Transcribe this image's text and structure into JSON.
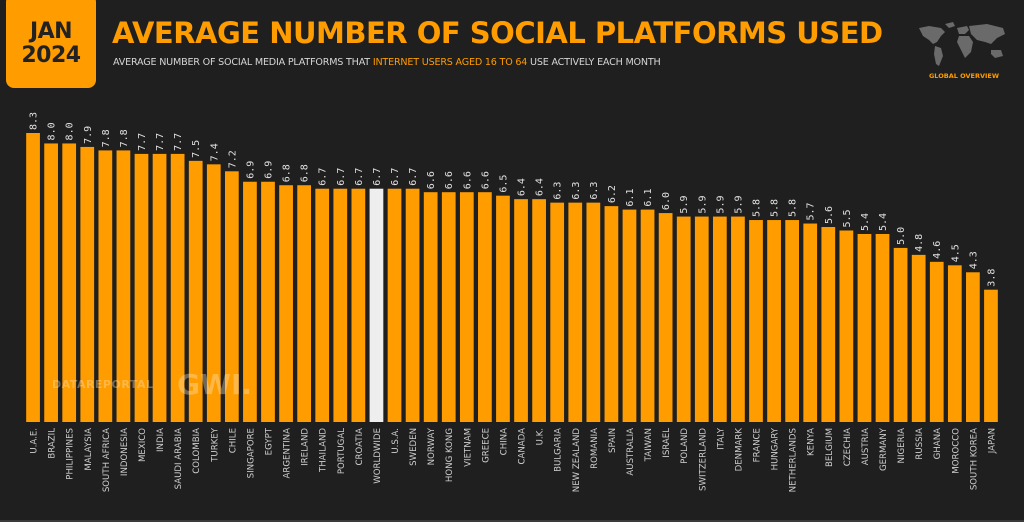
{
  "badge": {
    "month": "JAN",
    "year": "2024"
  },
  "header": {
    "title": "AVERAGE NUMBER OF SOCIAL PLATFORMS USED",
    "subtitle_pre": "AVERAGE NUMBER OF SOCIAL MEDIA PLATFORMS THAT ",
    "subtitle_highlight": "INTERNET USERS AGED 16 TO 64",
    "subtitle_post": " USE ACTIVELY EACH MONTH"
  },
  "logo": {
    "icon": "world-map-icon",
    "caption": "GLOBAL OVERVIEW"
  },
  "watermark": {
    "left": "DATAREPORTAL",
    "right": "GWI."
  },
  "colors": {
    "background": "#1f1f1f",
    "bar": "#ff9c00",
    "highlight_bar": "#eeeeee",
    "label": "#e0e0e0"
  },
  "chart_data": {
    "type": "bar",
    "title": "AVERAGE NUMBER OF SOCIAL PLATFORMS USED",
    "subtitle": "AVERAGE NUMBER OF SOCIAL MEDIA PLATFORMS THAT INTERNET USERS AGED 16 TO 64 USE ACTIVELY EACH MONTH",
    "xlabel": "",
    "ylabel": "",
    "ylim": [
      0,
      8.3
    ],
    "grid": false,
    "highlight_category": "WORLDWIDE",
    "categories": [
      "U.A.E.",
      "BRAZIL",
      "PHILIPPINES",
      "MALAYSIA",
      "SOUTH AFRICA",
      "INDONESIA",
      "MEXICO",
      "INDIA",
      "SAUDI ARABIA",
      "COLOMBIA",
      "TURKEY",
      "CHILE",
      "SINGAPORE",
      "EGYPT",
      "ARGENTINA",
      "IRELAND",
      "THAILAND",
      "PORTUGAL",
      "CROATIA",
      "WORLDWIDE",
      "U.S.A.",
      "SWEDEN",
      "NORWAY",
      "HONG KONG",
      "VIETNAM",
      "GREECE",
      "CHINA",
      "CANADA",
      "U.K.",
      "BULGARIA",
      "NEW ZEALAND",
      "ROMANIA",
      "SPAIN",
      "AUSTRALIA",
      "TAIWAN",
      "ISRAEL",
      "POLAND",
      "SWITZERLAND",
      "ITALY",
      "DENMARK",
      "FRANCE",
      "HUNGARY",
      "NETHERLANDS",
      "KENYA",
      "BELGIUM",
      "CZECHIA",
      "AUSTRIA",
      "GERMANY",
      "NIGERIA",
      "RUSSIA",
      "GHANA",
      "MOROCCO",
      "SOUTH KOREA",
      "JAPAN"
    ],
    "values": [
      8.3,
      8.0,
      8.0,
      7.9,
      7.8,
      7.8,
      7.7,
      7.7,
      7.7,
      7.5,
      7.4,
      7.2,
      6.9,
      6.9,
      6.8,
      6.8,
      6.7,
      6.7,
      6.7,
      6.7,
      6.7,
      6.7,
      6.6,
      6.6,
      6.6,
      6.6,
      6.5,
      6.4,
      6.4,
      6.3,
      6.3,
      6.3,
      6.2,
      6.1,
      6.1,
      6.0,
      5.9,
      5.9,
      5.9,
      5.9,
      5.8,
      5.8,
      5.8,
      5.7,
      5.6,
      5.5,
      5.4,
      5.4,
      5.0,
      4.8,
      4.6,
      4.5,
      4.3,
      3.8
    ],
    "value_labels": [
      "8.3",
      "8.0",
      "8.0",
      "7.9",
      "7.8",
      "7.8",
      "7.7",
      "7.7",
      "7.7",
      "7.5",
      "7.4",
      "7.2",
      "6.9",
      "6.9",
      "6.8",
      "6.8",
      "6.7",
      "6.7",
      "6.7",
      "6.7",
      "6.7",
      "6.7",
      "6.6",
      "6.6",
      "6.6",
      "6.6",
      "6.5",
      "6.4",
      "6.4",
      "6.3",
      "6.3",
      "6.3",
      "6.2",
      "6.1",
      "6.1",
      "6.0",
      "5.9",
      "5.9",
      "5.9",
      "5.9",
      "5.8",
      "5.8",
      "5.8",
      "5.7",
      "5.6",
      "5.5",
      "5.4",
      "5.4",
      "5.0",
      "4.8",
      "4.6",
      "4.5",
      "4.3",
      "3.8"
    ]
  }
}
